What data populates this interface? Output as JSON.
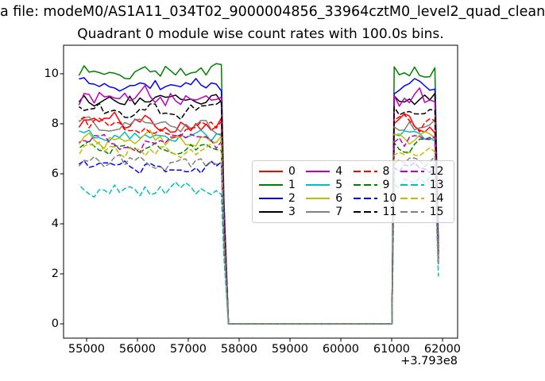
{
  "chart_data": {
    "type": "line",
    "suptitle": "a file: modeM0/AS1A11_034T02_9000004856_33964cztM0_level2_quad_clean",
    "title": "Quadrant 0 module wise count rates with 100.0s bins.",
    "xlabel": "",
    "ylabel": "",
    "x_offset_text": "+3.793e8",
    "x_ticks": [
      55000,
      56000,
      57000,
      58000,
      59000,
      60000,
      61000,
      62000
    ],
    "y_ticks": [
      0,
      2,
      4,
      6,
      8,
      10
    ],
    "x_range": [
      54547,
      62297
    ],
    "y_range": [
      -0.57,
      11.14
    ],
    "grid": false,
    "bin_seconds": 100.0,
    "legend_position": "lower center-right inside axes",
    "legend_columns": 4,
    "x_segments": {
      "pre_gap": [
        54850,
        57650
      ],
      "gap_zero": [
        57790,
        60950
      ],
      "post_gap": [
        61050,
        61850
      ],
      "final_x": 61920,
      "step": 100
    },
    "series": [
      {
        "label": "0",
        "color": "#ff0000",
        "linestyle": "solid",
        "mean_pre_gap": 8.1,
        "mean_gap": 0.0,
        "mean_post_gap": 8.05,
        "noise_amp": 0.33,
        "end_value": 2.6,
        "seed": 101
      },
      {
        "label": "1",
        "color": "#008000",
        "linestyle": "solid",
        "mean_pre_gap": 10.15,
        "mean_gap": 0.0,
        "mean_post_gap": 10.05,
        "noise_amp": 0.3,
        "end_value": 3.0,
        "seed": 202
      },
      {
        "label": "2",
        "color": "#0000ff",
        "linestyle": "solid",
        "mean_pre_gap": 9.55,
        "mean_gap": 0.0,
        "mean_post_gap": 9.45,
        "noise_amp": 0.28,
        "end_value": 2.9,
        "seed": 303
      },
      {
        "label": "3",
        "color": "#000000",
        "linestyle": "solid",
        "mean_pre_gap": 8.95,
        "mean_gap": 0.0,
        "mean_post_gap": 8.95,
        "noise_amp": 0.27,
        "end_value": 2.8,
        "seed": 404
      },
      {
        "label": "4",
        "color": "#bf00bf",
        "linestyle": "solid",
        "mean_pre_gap": 9.1,
        "mean_gap": 0.0,
        "mean_post_gap": 8.95,
        "noise_amp": 0.38,
        "end_value": 2.8,
        "seed": 505
      },
      {
        "label": "5",
        "color": "#00bfbf",
        "linestyle": "solid",
        "mean_pre_gap": 7.5,
        "mean_gap": 0.0,
        "mean_post_gap": 7.5,
        "noise_amp": 0.22,
        "end_value": 2.5,
        "seed": 606
      },
      {
        "label": "6",
        "color": "#bfbf00",
        "linestyle": "solid",
        "mean_pre_gap": 7.35,
        "mean_gap": 0.0,
        "mean_post_gap": 7.35,
        "noise_amp": 0.28,
        "end_value": 2.5,
        "seed": 707
      },
      {
        "label": "7",
        "color": "#808080",
        "linestyle": "solid",
        "mean_pre_gap": 7.95,
        "mean_gap": 0.0,
        "mean_post_gap": 7.9,
        "noise_amp": 0.28,
        "end_value": 2.6,
        "seed": 808
      },
      {
        "label": "8",
        "color": "#ff0000",
        "linestyle": "dashed",
        "mean_pre_gap": 7.9,
        "mean_gap": 0.0,
        "mean_post_gap": 7.95,
        "noise_amp": 0.28,
        "end_value": 2.6,
        "seed": 909
      },
      {
        "label": "9",
        "color": "#008000",
        "linestyle": "dashed",
        "mean_pre_gap": 7.05,
        "mean_gap": 0.0,
        "mean_post_gap": 7.15,
        "noise_amp": 0.24,
        "end_value": 2.4,
        "seed": 1010
      },
      {
        "label": "10",
        "color": "#0000ff",
        "linestyle": "dashed",
        "mean_pre_gap": 6.25,
        "mean_gap": 0.0,
        "mean_post_gap": 6.3,
        "noise_amp": 0.24,
        "end_value": 2.3,
        "seed": 1111
      },
      {
        "label": "11",
        "color": "#000000",
        "linestyle": "dashed",
        "mean_pre_gap": 8.5,
        "mean_gap": 0.0,
        "mean_post_gap": 8.45,
        "noise_amp": 0.28,
        "end_value": 2.7,
        "seed": 1212
      },
      {
        "label": "12",
        "color": "#bf00bf",
        "linestyle": "dashed",
        "mean_pre_gap": 7.25,
        "mean_gap": 0.0,
        "mean_post_gap": 7.3,
        "noise_amp": 0.28,
        "end_value": 2.5,
        "seed": 1313
      },
      {
        "label": "13",
        "color": "#00bfbf",
        "linestyle": "dashed",
        "mean_pre_gap": 5.4,
        "mean_gap": 0.0,
        "mean_post_gap": 5.6,
        "noise_amp": 0.28,
        "end_value": 1.9,
        "seed": 1414
      },
      {
        "label": "14",
        "color": "#bfbf00",
        "linestyle": "dashed",
        "mean_pre_gap": 6.95,
        "mean_gap": 0.0,
        "mean_post_gap": 7.0,
        "noise_amp": 0.28,
        "end_value": 2.4,
        "seed": 1515
      },
      {
        "label": "15",
        "color": "#808080",
        "linestyle": "dashed",
        "mean_pre_gap": 6.45,
        "mean_gap": 0.0,
        "mean_post_gap": 6.5,
        "noise_amp": 0.28,
        "end_value": 2.3,
        "seed": 1616
      }
    ]
  }
}
